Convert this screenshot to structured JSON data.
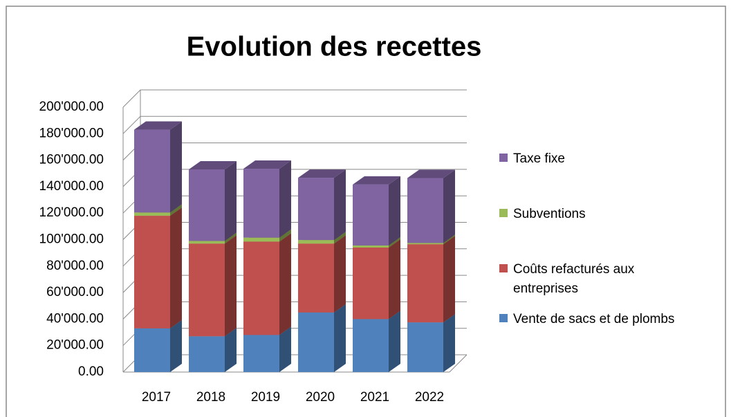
{
  "chart_data": {
    "type": "bar3d_stacked",
    "title": "Evolution des recettes",
    "categories": [
      "2017",
      "2018",
      "2019",
      "2020",
      "2021",
      "2022"
    ],
    "series": [
      {
        "name": "Vente de sacs et de plombs",
        "color": "#4f81bd",
        "values": [
          33000,
          27000,
          28000,
          45000,
          40000,
          37500
        ]
      },
      {
        "name": "Coûts refacturés aux entreprises",
        "color": "#c0504d",
        "values": [
          85000,
          70000,
          70500,
          52000,
          54000,
          59000
        ]
      },
      {
        "name": "Subventions",
        "color": "#9bbb59",
        "values": [
          2500,
          2000,
          3000,
          2700,
          1600,
          1000
        ]
      },
      {
        "name": "Taxe fixe",
        "color": "#8064a2",
        "values": [
          62500,
          54000,
          52000,
          47000,
          46000,
          49000
        ]
      }
    ],
    "ylim": [
      0,
      200000
    ],
    "yticks": [
      {
        "value": 0,
        "label": "0.00"
      },
      {
        "value": 20000,
        "label": "20'000.00"
      },
      {
        "value": 40000,
        "label": "40'000.00"
      },
      {
        "value": 60000,
        "label": "60'000.00"
      },
      {
        "value": 80000,
        "label": "80'000.00"
      },
      {
        "value": 100000,
        "label": "100'000.00"
      },
      {
        "value": 120000,
        "label": "120'000.00"
      },
      {
        "value": 140000,
        "label": "140'000.00"
      },
      {
        "value": 160000,
        "label": "160'000.00"
      },
      {
        "value": 180000,
        "label": "180'000.00"
      },
      {
        "value": 200000,
        "label": "200'000.00"
      }
    ],
    "grid": true
  }
}
